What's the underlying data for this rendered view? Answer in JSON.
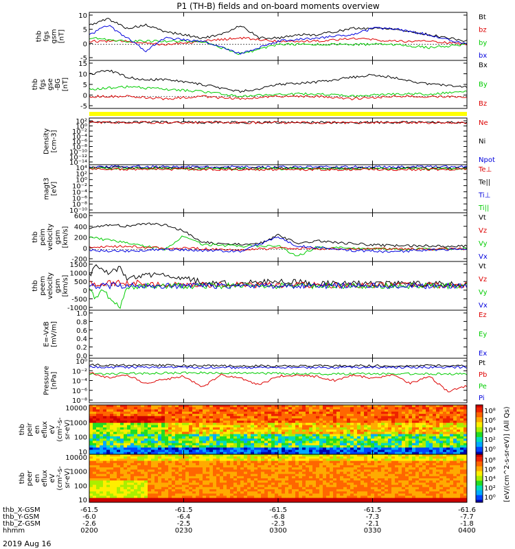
{
  "title": "P1 (TH-B) fields and on-board moments overview",
  "date_label": "2019 Aug 16",
  "colors": {
    "black": "#000000",
    "red": "#dd0000",
    "green": "#00cc00",
    "blue": "#0000dd",
    "yellow": "#ffff00"
  },
  "chart_data": [
    {
      "type": "line",
      "ylabel_lines": [
        "thb",
        "fgs",
        "gsm",
        "[nT]"
      ],
      "ylim": [
        -5,
        10
      ],
      "yticks": [
        "10",
        "5",
        "0",
        "-5"
      ],
      "legend": [
        {
          "label": "Bt",
          "color": "#000000"
        },
        {
          "label": "bz",
          "color": "#dd0000"
        },
        {
          "label": "by",
          "color": "#00cc00"
        },
        {
          "label": "bx",
          "color": "#0000dd"
        }
      ],
      "series": [
        {
          "name": "Bt",
          "color": "#000000",
          "x": [
            0,
            0.05,
            0.1,
            0.15,
            0.2,
            0.25,
            0.3,
            0.35,
            0.4,
            0.45,
            0.5,
            0.55,
            0.6,
            0.7,
            0.8,
            0.9,
            1.0
          ],
          "y": [
            6,
            8,
            5,
            6,
            4,
            3,
            2,
            3,
            6,
            2,
            2,
            3,
            3,
            5,
            5,
            3,
            1
          ]
        },
        {
          "name": "bz",
          "color": "#dd0000",
          "x": [
            0,
            0.1,
            0.2,
            0.3,
            0.4,
            0.5,
            0.6,
            0.7,
            0.8,
            0.9,
            1.0
          ],
          "y": [
            1,
            1,
            0,
            1,
            2,
            1,
            1,
            2,
            1,
            1,
            0
          ]
        },
        {
          "name": "by",
          "color": "#00cc00",
          "x": [
            0,
            0.1,
            0.2,
            0.3,
            0.4,
            0.5,
            0.6,
            0.7,
            0.8,
            0.9,
            1.0
          ],
          "y": [
            2,
            1,
            1,
            1,
            -3,
            0,
            0,
            0,
            0,
            -1,
            0
          ]
        },
        {
          "name": "bx",
          "color": "#0000dd",
          "x": [
            0,
            0.05,
            0.1,
            0.15,
            0.2,
            0.3,
            0.4,
            0.45,
            0.5,
            0.6,
            0.7,
            0.75,
            0.8,
            0.9,
            1.0
          ],
          "y": [
            3,
            6,
            2,
            -2,
            2,
            1,
            -3,
            -1,
            1,
            2,
            3,
            5,
            5,
            3,
            0
          ]
        }
      ]
    },
    {
      "type": "line",
      "ylabel_lines": [
        "thb",
        "fgs",
        "gse",
        "-BG",
        "[nT]"
      ],
      "ylim": [
        -5,
        15
      ],
      "yticks": [
        "15",
        "10",
        "5",
        "0",
        "-5"
      ],
      "legend": [
        {
          "label": "Bx",
          "color": "#000000"
        },
        {
          "label": "By",
          "color": "#00cc00"
        },
        {
          "label": "Bz",
          "color": "#dd0000"
        }
      ],
      "series": [
        {
          "name": "Bx",
          "color": "#000000",
          "x": [
            0,
            0.05,
            0.1,
            0.15,
            0.2,
            0.3,
            0.4,
            0.45,
            0.5,
            0.6,
            0.7,
            0.75,
            0.8,
            0.9,
            1.0
          ],
          "y": [
            9,
            11,
            8,
            7,
            7,
            5,
            2,
            3,
            5,
            6,
            8,
            9,
            8,
            5,
            4
          ]
        },
        {
          "name": "By",
          "color": "#00cc00",
          "x": [
            0,
            0.1,
            0.2,
            0.3,
            0.4,
            0.5,
            0.6,
            0.7,
            0.8,
            0.9,
            1.0
          ],
          "y": [
            3,
            4,
            3,
            2,
            0,
            1,
            1,
            0,
            1,
            1,
            2
          ]
        },
        {
          "name": "Bz",
          "color": "#dd0000",
          "x": [
            0,
            0.1,
            0.2,
            0.3,
            0.4,
            0.5,
            0.6,
            0.7,
            0.8,
            0.9,
            1.0
          ],
          "y": [
            0,
            0,
            -1,
            0,
            -1,
            0,
            0,
            -1,
            0,
            0,
            0
          ]
        }
      ]
    },
    {
      "type": "line",
      "log_y": true,
      "ylabel_lines": [
        "Density",
        "[cm-3]"
      ],
      "ylim": [
        -14,
        2
      ],
      "yticks": [
        "10²",
        "10⁰",
        "10⁻²",
        "10⁻⁴",
        "10⁻⁶",
        "10⁻⁸",
        "10⁻¹⁰",
        "10⁻¹²",
        "10⁻¹⁴"
      ],
      "legend": [
        {
          "label": "Ne",
          "color": "#dd0000"
        },
        {
          "label": "Ni",
          "color": "#000000"
        },
        {
          "label": "Npot",
          "color": "#0000dd"
        }
      ],
      "series": [
        {
          "name": "Ni",
          "color": "#000000",
          "x": [
            0,
            0.5,
            1.0
          ],
          "y": [
            0.6,
            0.5,
            0.5
          ]
        },
        {
          "name": "Ne",
          "color": "#dd0000",
          "x": [
            0,
            0.5,
            1.0
          ],
          "y": [
            0.5,
            0.4,
            0.4
          ]
        }
      ]
    },
    {
      "type": "line",
      "log_y": true,
      "ylabel_lines": [
        "magt3",
        "[eV]"
      ],
      "ylim": [
        -10,
        4
      ],
      "yticks": [
        "10⁴",
        "10²",
        "10⁰",
        "10⁻²",
        "10⁻⁴",
        "10⁻⁶",
        "10⁻⁸",
        "10⁻¹⁰"
      ],
      "legend": [
        {
          "label": "Te⊥",
          "color": "#dd0000"
        },
        {
          "label": "Te||",
          "color": "#000000"
        },
        {
          "label": "Ti⊥",
          "color": "#0000dd"
        },
        {
          "label": "Ti||",
          "color": "#00cc00"
        }
      ],
      "series": [
        {
          "name": "Ti⊥",
          "color": "#0000dd",
          "x": [
            0,
            0.5,
            1.0
          ],
          "y": [
            3.5,
            3.3,
            3.4
          ]
        },
        {
          "name": "Te||",
          "color": "#000000",
          "x": [
            0,
            0.5,
            1.0
          ],
          "y": [
            3.1,
            3.0,
            3.0
          ]
        },
        {
          "name": "Ti||",
          "color": "#00cc00",
          "x": [
            0,
            0.5,
            1.0
          ],
          "y": [
            2.9,
            2.8,
            2.8
          ]
        },
        {
          "name": "Te⊥",
          "color": "#dd0000",
          "x": [
            0,
            0.5,
            1.0
          ],
          "y": [
            2.7,
            2.6,
            2.6
          ]
        }
      ]
    },
    {
      "type": "line",
      "ylabel_lines": [
        "thb",
        "peim",
        "velocity",
        "gsm",
        "[km/s]"
      ],
      "ylim": [
        -200,
        600
      ],
      "yticks": [
        "600",
        "400",
        "200",
        "0",
        "-200"
      ],
      "legend": [
        {
          "label": "Vt",
          "color": "#000000"
        },
        {
          "label": "Vz",
          "color": "#dd0000"
        },
        {
          "label": "Vy",
          "color": "#00cc00"
        },
        {
          "label": "Vx",
          "color": "#0000dd"
        }
      ],
      "series": [
        {
          "name": "Vt",
          "color": "#000000",
          "x": [
            0,
            0.05,
            0.1,
            0.15,
            0.2,
            0.25,
            0.3,
            0.35,
            0.45,
            0.5,
            0.55,
            0.6,
            0.7,
            0.8,
            1.0
          ],
          "y": [
            350,
            400,
            380,
            420,
            400,
            300,
            120,
            80,
            90,
            230,
            100,
            140,
            90,
            60,
            50
          ]
        },
        {
          "name": "Vy",
          "color": "#00cc00",
          "x": [
            0,
            0.05,
            0.1,
            0.15,
            0.2,
            0.25,
            0.3,
            0.4,
            0.5,
            0.55,
            0.6,
            0.7,
            0.8,
            1.0
          ],
          "y": [
            200,
            150,
            100,
            50,
            0,
            220,
            80,
            50,
            60,
            -120,
            30,
            20,
            0,
            10
          ]
        },
        {
          "name": "Vz",
          "color": "#dd0000",
          "x": [
            0,
            0.1,
            0.2,
            0.3,
            0.4,
            0.5,
            0.6,
            0.7,
            0.8,
            0.9,
            1.0
          ],
          "y": [
            30,
            50,
            20,
            10,
            -10,
            20,
            10,
            0,
            10,
            0,
            10
          ]
        },
        {
          "name": "Vx",
          "color": "#0000dd",
          "x": [
            0,
            0.1,
            0.2,
            0.3,
            0.4,
            0.5,
            0.55,
            0.6,
            0.7,
            0.8,
            0.9,
            1.0
          ],
          "y": [
            -20,
            -30,
            0,
            -20,
            -30,
            200,
            50,
            30,
            -20,
            -40,
            -10,
            0
          ]
        }
      ]
    },
    {
      "type": "line",
      "ylabel_lines": [
        "thb",
        "peem",
        "velocity",
        "gsm",
        "[km/s]"
      ],
      "ylim": [
        -1500,
        1500
      ],
      "yticks": [
        "1500",
        "1000",
        "500",
        "0",
        "-500",
        "-1000"
      ],
      "legend": [
        {
          "label": "Vt",
          "color": "#000000"
        },
        {
          "label": "Vz",
          "color": "#dd0000"
        },
        {
          "label": "Vy",
          "color": "#00cc00"
        },
        {
          "label": "Vx",
          "color": "#0000dd"
        }
      ],
      "series": [
        {
          "name": "Vt",
          "color": "#000000",
          "x": [
            0,
            0.02,
            0.05,
            0.08,
            0.1,
            0.15,
            0.2,
            0.25,
            0.3,
            0.4,
            0.5,
            0.6,
            0.8,
            1.0
          ],
          "y": [
            600,
            1200,
            800,
            1100,
            500,
            700,
            600,
            500,
            200,
            150,
            300,
            150,
            120,
            100
          ]
        },
        {
          "name": "Vz",
          "color": "#dd0000",
          "x": [
            0,
            0.1,
            0.2,
            0.3,
            0.5,
            0.7,
            1.0
          ],
          "y": [
            100,
            200,
            100,
            50,
            50,
            30,
            30
          ]
        },
        {
          "name": "Vy",
          "color": "#00cc00",
          "x": [
            0,
            0.02,
            0.03,
            0.05,
            0.08,
            0.1,
            0.2,
            0.4,
            0.6,
            1.0
          ],
          "y": [
            -200,
            -900,
            -100,
            -600,
            -1400,
            -50,
            0,
            0,
            0,
            0
          ]
        },
        {
          "name": "Vx",
          "color": "#0000dd",
          "x": [
            0,
            0.5,
            1.0
          ],
          "y": [
            0,
            0,
            0
          ]
        }
      ]
    },
    {
      "type": "line",
      "ylabel_lines": [
        "E=-VxB",
        "[mV/m]"
      ],
      "ylim": [
        0,
        1
      ],
      "yticks": [
        "1.0",
        "0.8",
        "0.6",
        "0.4",
        "0.2",
        "0.0"
      ],
      "legend": [
        {
          "label": "Ez",
          "color": "#dd0000"
        },
        {
          "label": "Ey",
          "color": "#00cc00"
        },
        {
          "label": "Ex",
          "color": "#0000dd"
        }
      ],
      "series": []
    },
    {
      "type": "line",
      "log_y": true,
      "ylabel_lines": [
        "Pressure",
        "[nPa]"
      ],
      "ylim": [
        -8,
        0
      ],
      "yticks": [
        "10⁰",
        "10⁻²",
        "10⁻⁴",
        "10⁻⁶",
        "10⁻⁸"
      ],
      "legend": [
        {
          "label": "Pt",
          "color": "#000000"
        },
        {
          "label": "Pb",
          "color": "#dd0000"
        },
        {
          "label": "Pe",
          "color": "#00cc00"
        },
        {
          "label": "Pi",
          "color": "#0000dd"
        }
      ],
      "series": [
        {
          "name": "Pt",
          "color": "#000000",
          "x": [
            0,
            0.5,
            1.0
          ],
          "y": [
            -1.2,
            -1.4,
            -1.3
          ]
        },
        {
          "name": "Pi",
          "color": "#0000dd",
          "x": [
            0,
            0.5,
            1.0
          ],
          "y": [
            -1.6,
            -1.7,
            -1.6
          ]
        },
        {
          "name": "Pe",
          "color": "#00cc00",
          "x": [
            0,
            0.3,
            0.6,
            1.0
          ],
          "y": [
            -2.8,
            -2.6,
            -2.8,
            -2.8
          ]
        },
        {
          "name": "Pb",
          "color": "#dd0000",
          "x": [
            0,
            0.05,
            0.1,
            0.15,
            0.2,
            0.25,
            0.3,
            0.35,
            0.4,
            0.45,
            0.5,
            0.55,
            0.6,
            0.65,
            0.7,
            0.75,
            0.8,
            0.85,
            0.9,
            0.95,
            1.0
          ],
          "y": [
            -2.5,
            -3.5,
            -3.0,
            -4.5,
            -3.8,
            -3.2,
            -5.2,
            -3.0,
            -3.5,
            -4.8,
            -3.2,
            -3.0,
            -3.3,
            -4.0,
            -3.0,
            -3.6,
            -3.0,
            -4.5,
            -3.2,
            -6.0,
            -5.0
          ]
        }
      ]
    },
    {
      "type": "heatmap",
      "ylabel_lines": [
        "thb",
        "peir",
        "en",
        "eflux",
        "eV",
        "(cm²-s-",
        "sr-eV)"
      ],
      "yticks": [
        "10000",
        "1000",
        "100",
        "10"
      ],
      "colorbar_ticks": [
        "10⁸",
        "10⁶",
        "10⁴",
        "10²",
        "10⁰"
      ]
    },
    {
      "type": "heatmap",
      "ylabel_lines": [
        "thb",
        "peer",
        "en",
        "eflux",
        "eV",
        "(cm²-s-",
        "sr-eV)"
      ],
      "yticks": [
        "10000",
        "1000",
        "100",
        "10"
      ],
      "colorbar_ticks": [
        "10⁸",
        "10⁶",
        "10⁴",
        "10²",
        "10⁰"
      ]
    }
  ],
  "colorbar_label": "[eV/(cm^2-s-sr-eV)] (All Qs)",
  "orbit": {
    "row_labels": [
      "thb_X-GSM",
      "thb_Y-GSM",
      "thb_Z-GSM",
      "hhmm"
    ],
    "columns": [
      {
        "values": [
          "-61.5",
          "-6.0",
          "-2.6",
          "0200"
        ]
      },
      {
        "values": [
          "-61.5",
          "-6.4",
          "-2.5",
          "0230"
        ]
      },
      {
        "values": [
          "-61.5",
          "-6.8",
          "-2.3",
          "0300"
        ]
      },
      {
        "values": [
          "-61.5",
          "-7.3",
          "-2.1",
          "0330"
        ]
      },
      {
        "values": [
          "-61.6",
          "-7.7",
          "-1.8",
          "0400"
        ]
      }
    ]
  }
}
